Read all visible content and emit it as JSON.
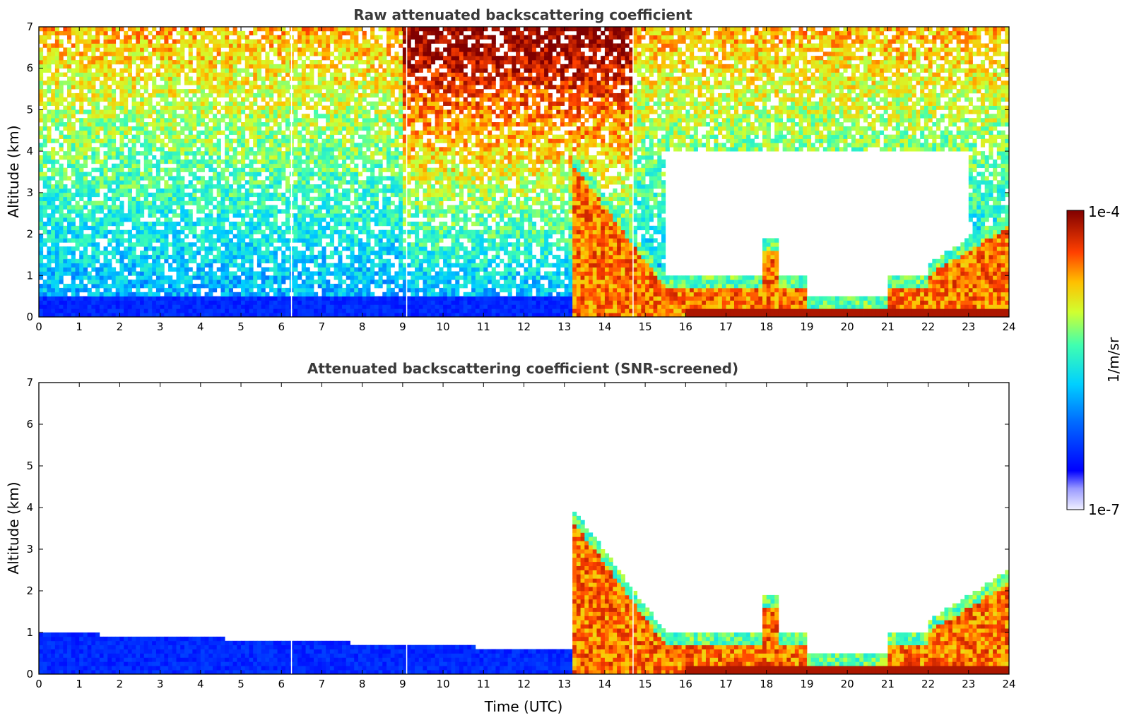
{
  "chart_data": [
    {
      "type": "heatmap",
      "title": "Raw attenuated backscattering coefficient",
      "xlabel": "",
      "ylabel": "Altitude (km)",
      "xlim": [
        0,
        24
      ],
      "ylim": [
        0,
        7
      ],
      "xticks": [
        0,
        1,
        2,
        3,
        4,
        5,
        6,
        7,
        8,
        9,
        10,
        11,
        12,
        13,
        14,
        15,
        16,
        17,
        18,
        19,
        20,
        21,
        22,
        23,
        24
      ],
      "yticks": [
        0,
        1,
        2,
        3,
        4,
        5,
        6,
        7
      ],
      "data_gaps_hours": [
        6.25,
        9.1,
        14.7
      ],
      "features": [
        {
          "name": "near-surface layer",
          "x": [
            0,
            15.5
          ],
          "top_km": 0.45,
          "level": "low"
        },
        {
          "name": "descending plume",
          "x": [
            13.2,
            15.5
          ],
          "top_km_start": 3.6,
          "top_km_end": 1.0,
          "level": "high"
        },
        {
          "name": "boundary layer",
          "x": [
            15.5,
            22
          ],
          "top_km": 1.0,
          "level": "high"
        },
        {
          "name": "cloud",
          "x": [
            22,
            24
          ],
          "top_km": 2.4,
          "level": "very high"
        }
      ]
    },
    {
      "type": "heatmap",
      "title": "Attenuated backscattering coefficient (SNR-screened)",
      "xlabel": "Time (UTC)",
      "ylabel": "Altitude (km)",
      "xlim": [
        0,
        24
      ],
      "ylim": [
        0,
        7
      ],
      "xticks": [
        0,
        1,
        2,
        3,
        4,
        5,
        6,
        7,
        8,
        9,
        10,
        11,
        12,
        13,
        14,
        15,
        16,
        17,
        18,
        19,
        20,
        21,
        22,
        23,
        24
      ],
      "yticks": [
        0,
        1,
        2,
        3,
        4,
        5,
        6,
        7
      ],
      "data_gaps_hours": [
        6.25,
        9.1,
        14.7
      ],
      "features": [
        {
          "name": "near-surface layer",
          "x": [
            0,
            15.5
          ],
          "top_km_start": 1.0,
          "top_km_end": 0.5,
          "level": "low"
        },
        {
          "name": "descending plume",
          "x": [
            13.2,
            15.5
          ],
          "top_km_start": 4.2,
          "top_km_end": 1.0,
          "level": "high"
        },
        {
          "name": "boundary layer",
          "x": [
            15.5,
            22
          ],
          "top_km": 1.0,
          "level": "high"
        },
        {
          "name": "cloud",
          "x": [
            22,
            24
          ],
          "top_km": 2.4,
          "level": "very high"
        }
      ]
    }
  ],
  "colorbar": {
    "max_label": "1e-4",
    "min_label": "1e-7",
    "unit_label": "1/m/sr",
    "colormap": "jet"
  }
}
